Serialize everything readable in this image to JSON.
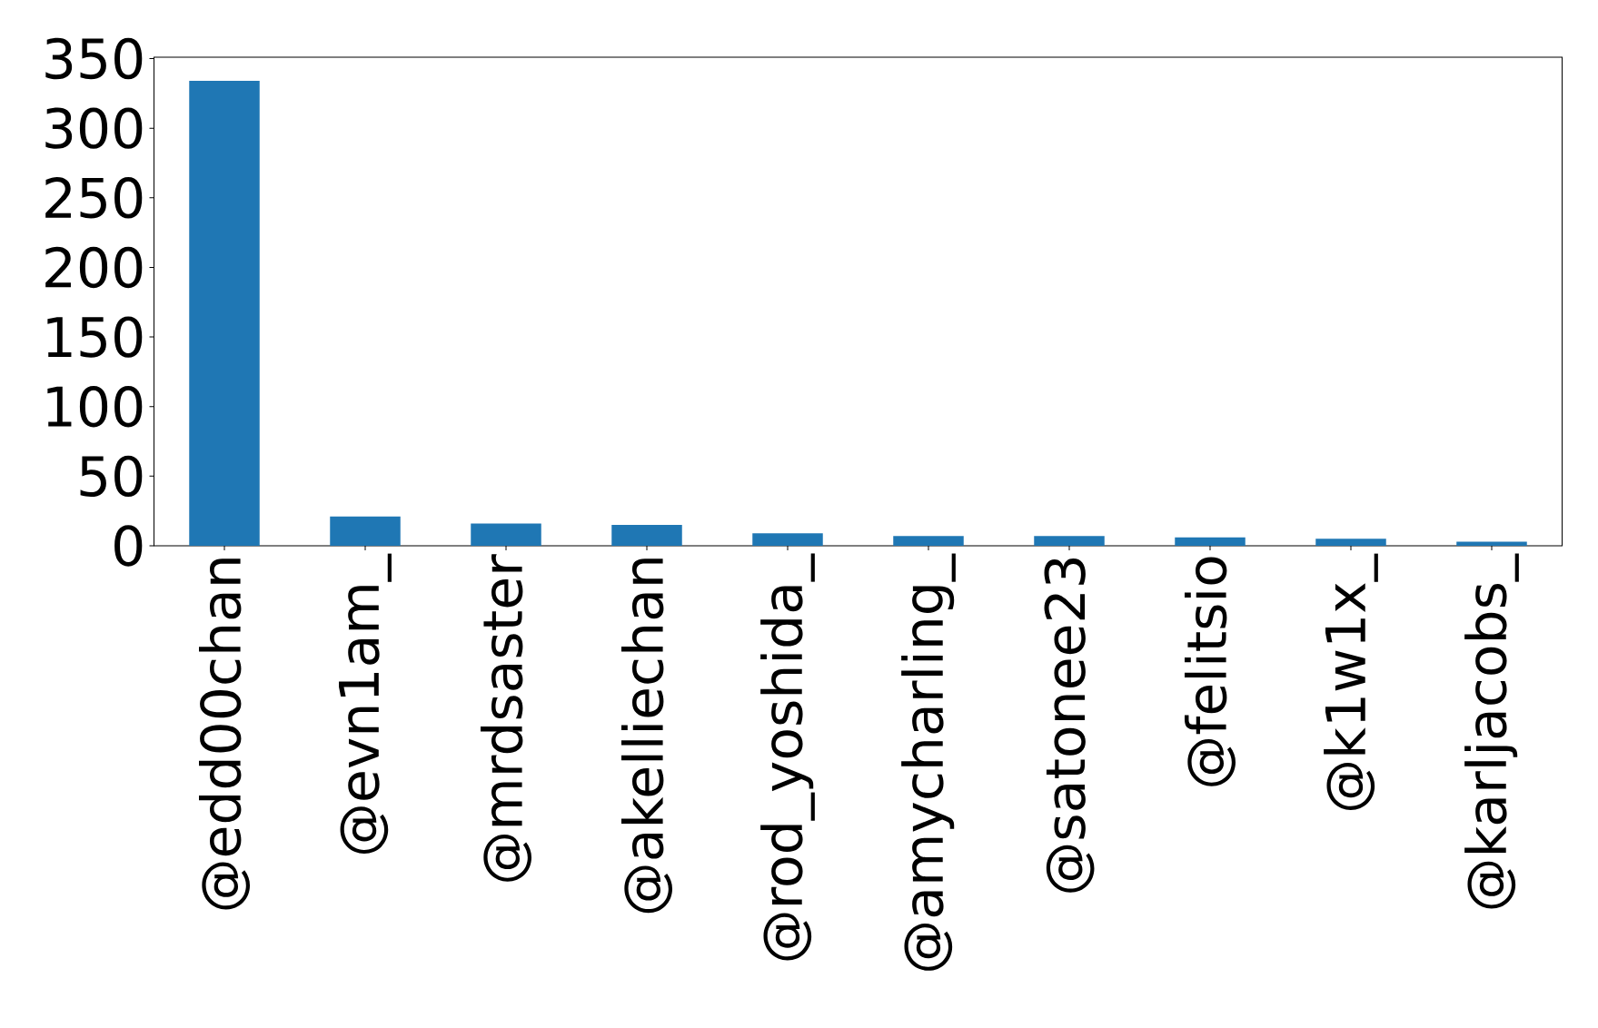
{
  "chart_data": {
    "type": "bar",
    "categories": [
      "@edd00chan",
      "@evn1am_",
      "@mrdsaster",
      "@akelliechan",
      "@rod_yoshida_",
      "@amycharling_",
      "@satonee23",
      "@felitsio",
      "@k1w1x_",
      "@karljacobs_"
    ],
    "values": [
      334,
      21,
      16,
      15,
      9,
      7,
      7,
      6,
      5,
      3
    ],
    "color": "#1f77b4",
    "ylim": [
      0,
      351
    ],
    "yticks": [
      0,
      50,
      100,
      150,
      200,
      250,
      300,
      350
    ]
  }
}
